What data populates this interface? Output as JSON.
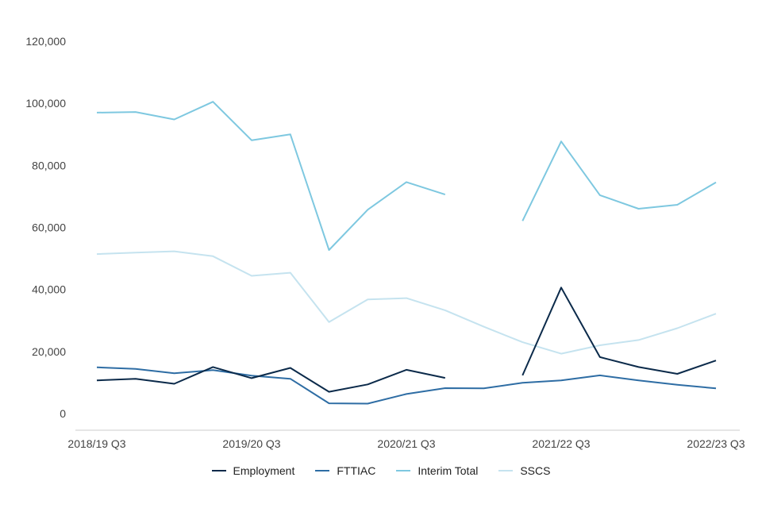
{
  "chart_data": {
    "type": "line",
    "title": "",
    "xlabel": "",
    "ylabel": "",
    "ylim": [
      0,
      120000
    ],
    "yticks": [
      {
        "value": 0,
        "label": "0"
      },
      {
        "value": 20000,
        "label": "20,000"
      },
      {
        "value": 40000,
        "label": "40,000"
      },
      {
        "value": 60000,
        "label": "60,000"
      },
      {
        "value": 80000,
        "label": "80,000"
      },
      {
        "value": 100000,
        "label": "100,000"
      },
      {
        "value": 120000,
        "label": "120,000"
      }
    ],
    "categories": [
      "2018/19 Q3",
      "2018/19 Q4",
      "2019/20 Q1",
      "2019/20 Q2",
      "2019/20 Q3",
      "2019/20 Q4",
      "2020/21 Q1",
      "2020/21 Q2",
      "2020/21 Q3",
      "2020/21 Q4",
      "2021/22 Q1",
      "2021/22 Q2",
      "2021/22 Q3",
      "2021/22 Q4",
      "2022/23 Q1",
      "2022/23 Q2",
      "2022/23 Q3"
    ],
    "xtick_labels": [
      {
        "index": 0,
        "label": "2018/19 Q3"
      },
      {
        "index": 4,
        "label": "2019/20 Q3"
      },
      {
        "index": 8,
        "label": "2020/21 Q3"
      },
      {
        "index": 12,
        "label": "2021/22 Q3"
      },
      {
        "index": 16,
        "label": "2022/23 Q3"
      }
    ],
    "grid": false,
    "legend_position": "bottom",
    "series": [
      {
        "name": "Employment",
        "color": "#0b2a4a",
        "values": [
          10700,
          11200,
          9600,
          15000,
          11400,
          14700,
          7000,
          9400,
          14100,
          11500,
          null,
          12300,
          40600,
          18200,
          15000,
          12800,
          17100
        ]
      },
      {
        "name": "FTTIAC",
        "color": "#2e6da4",
        "values": [
          14900,
          14400,
          13000,
          14000,
          12200,
          11200,
          3300,
          3200,
          6300,
          8200,
          8100,
          9900,
          10700,
          12300,
          10700,
          9300,
          8100
        ]
      },
      {
        "name": "Interim Total",
        "color": "#7ec8e0",
        "values": [
          97000,
          97200,
          94800,
          100500,
          88100,
          90000,
          52700,
          65700,
          74600,
          70600,
          null,
          62100,
          87700,
          70400,
          66000,
          67300,
          74500
        ]
      },
      {
        "name": "SSCS",
        "color": "#c5e3ef",
        "values": [
          51400,
          51900,
          52300,
          50700,
          44400,
          45400,
          29500,
          36800,
          37200,
          33300,
          28000,
          23000,
          19300,
          22000,
          23700,
          27500,
          32200
        ]
      }
    ]
  }
}
